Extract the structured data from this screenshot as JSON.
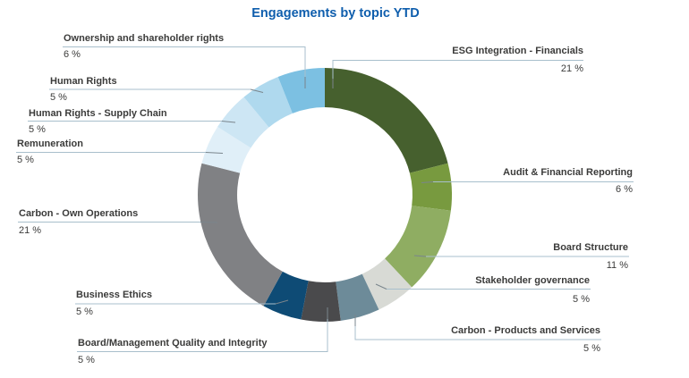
{
  "title": {
    "text": "Engagements by topic YTD",
    "color": "#0F5EAD"
  },
  "style": {
    "background": "#FFFFFF",
    "label_color": "#3B3B3A",
    "leader_line_color": "#A8BFCC",
    "leader_tick_color": "#7A858C"
  },
  "chart_data": {
    "type": "pie",
    "subtype": "donut",
    "title": "Engagements by topic YTD",
    "unit": "%",
    "direction": "clockwise",
    "start_angle_deg": 0,
    "inner_radius_ratio": 0.69,
    "legend_position": "callout-labels",
    "segments": [
      {
        "label": "ESG Integration - Financials",
        "value": 21,
        "pct_text": "21 %",
        "color": "#46602E"
      },
      {
        "label": "Audit & Financial Reporting",
        "value": 6,
        "pct_text": "6 %",
        "color": "#789A3F"
      },
      {
        "label": "Board Structure",
        "value": 11,
        "pct_text": "11 %",
        "color": "#8FAD62"
      },
      {
        "label": "Stakeholder governance",
        "value": 5,
        "pct_text": "5 %",
        "color": "#D8DAD5"
      },
      {
        "label": "Carbon - Products and Services",
        "value": 5,
        "pct_text": "5 %",
        "color": "#6D8B99"
      },
      {
        "label": "Board/Management Quality and Integrity",
        "value": 5,
        "pct_text": "5 %",
        "color": "#4A4A4C"
      },
      {
        "label": "Business Ethics",
        "value": 5,
        "pct_text": "5 %",
        "color": "#0E4B75"
      },
      {
        "label": "Carbon - Own Operations",
        "value": 21,
        "pct_text": "21 %",
        "color": "#808184"
      },
      {
        "label": "Remuneration",
        "value": 5,
        "pct_text": "5 %",
        "color": "#E0EFF8"
      },
      {
        "label": "Human Rights - Supply Chain",
        "value": 5,
        "pct_text": "5 %",
        "color": "#CDE6F4"
      },
      {
        "label": "Human Rights",
        "value": 5,
        "pct_text": "5 %",
        "color": "#AFD9EE"
      },
      {
        "label": "Ownership and shareholder rights",
        "value": 6,
        "pct_text": "6 %",
        "color": "#7CC0E2"
      }
    ]
  }
}
